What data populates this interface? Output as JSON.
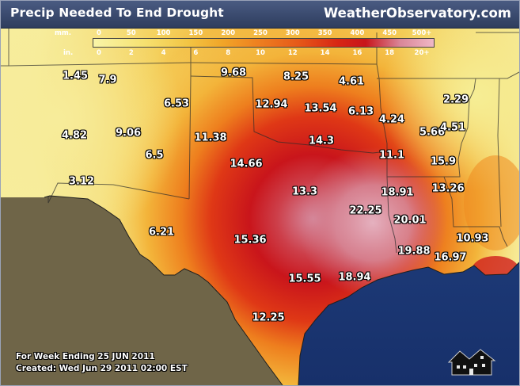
{
  "header": {
    "title": "Precip Needed To End Drought",
    "brand": "WeatherObservatory.com"
  },
  "legend": {
    "mm_unit": "mm.",
    "in_unit": "in.",
    "mm_ticks": [
      "0",
      "50",
      "100",
      "150",
      "200",
      "250",
      "300",
      "350",
      "400",
      "450",
      "500+"
    ],
    "in_ticks": [
      "0",
      "2",
      "4",
      "6",
      "8",
      "10",
      "12",
      "14",
      "16",
      "18",
      "20+"
    ]
  },
  "map_values": [
    {
      "id": "nm-nw",
      "label": "1.45",
      "value": 1.45
    },
    {
      "id": "nm-n",
      "label": "7.9",
      "value": 7.9
    },
    {
      "id": "ok-panhandle",
      "label": "9.68",
      "value": 9.68
    },
    {
      "id": "ok-n",
      "label": "8.25",
      "value": 8.25
    },
    {
      "id": "ok-ne",
      "label": "4.61",
      "value": 4.61
    },
    {
      "id": "ar-n",
      "label": "2.29",
      "value": 2.29
    },
    {
      "id": "nm-ne",
      "label": "6.53",
      "value": 6.53
    },
    {
      "id": "ok-w",
      "label": "12.94",
      "value": 12.94
    },
    {
      "id": "ok-c",
      "label": "13.54",
      "value": 13.54
    },
    {
      "id": "ok-e",
      "label": "6.13",
      "value": 6.13
    },
    {
      "id": "ar-w",
      "label": "4.24",
      "value": 4.24
    },
    {
      "id": "ar-c",
      "label": "5.66",
      "value": 5.66
    },
    {
      "id": "ar-e",
      "label": "4.51",
      "value": 4.51
    },
    {
      "id": "nm-w",
      "label": "4.82",
      "value": 4.82
    },
    {
      "id": "nm-c",
      "label": "9.06",
      "value": 9.06
    },
    {
      "id": "tx-panhandle",
      "label": "11.38",
      "value": 11.38
    },
    {
      "id": "ok-s",
      "label": "14.3",
      "value": 14.3
    },
    {
      "id": "ar-sw",
      "label": "11.1",
      "value": 11.1
    },
    {
      "id": "ar-s",
      "label": "15.9",
      "value": 15.9
    },
    {
      "id": "nm-se",
      "label": "6.5",
      "value": 6.5
    },
    {
      "id": "tx-nw",
      "label": "14.66",
      "value": 14.66
    },
    {
      "id": "nm-sw",
      "label": "3.12",
      "value": 3.12
    },
    {
      "id": "tx-nc",
      "label": "13.3",
      "value": 13.3
    },
    {
      "id": "tx-ne",
      "label": "18.91",
      "value": 18.91
    },
    {
      "id": "la-n",
      "label": "13.26",
      "value": 13.26
    },
    {
      "id": "tx-e",
      "label": "22.25",
      "value": 22.25
    },
    {
      "id": "la-nw",
      "label": "20.01",
      "value": 20.01
    },
    {
      "id": "tx-w",
      "label": "6.21",
      "value": 6.21
    },
    {
      "id": "tx-wc",
      "label": "15.36",
      "value": 15.36
    },
    {
      "id": "la-se",
      "label": "10.93",
      "value": 10.93
    },
    {
      "id": "la-sw",
      "label": "19.88",
      "value": 19.88
    },
    {
      "id": "la-s",
      "label": "16.97",
      "value": 16.97
    },
    {
      "id": "tx-sc",
      "label": "15.55",
      "value": 15.55
    },
    {
      "id": "tx-se",
      "label": "18.94",
      "value": 18.94
    },
    {
      "id": "tx-s",
      "label": "12.25",
      "value": 12.25
    }
  ],
  "footer": {
    "week_line": "For Week Ending 25 JUN 2011",
    "created_line": "Created: Wed Jun 29 2011 02:00 EST"
  },
  "icons": {
    "logo": "house-icon"
  },
  "colors": {
    "header_bg": "#3a4a6e",
    "gulf_water": "#1f3c7a",
    "mexico_land": "#6e6448",
    "low_need": "#f6ee9a",
    "mid_need": "#f2a629",
    "high_need": "#c8151b",
    "extreme_need": "#d8a2b1"
  }
}
